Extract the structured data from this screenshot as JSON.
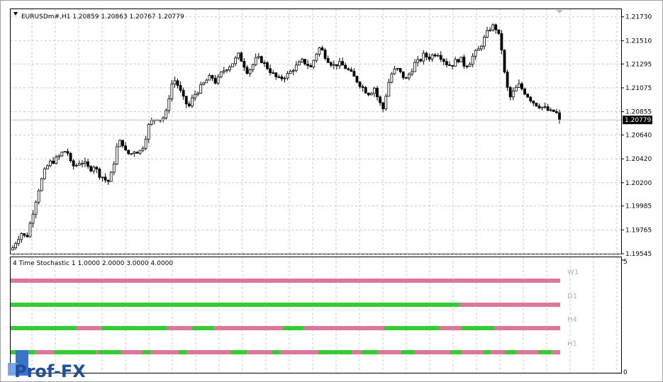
{
  "main_chart": {
    "header": "EURUSDm#,H1  1.20859 1.20863 1.20767 1.20779",
    "current_price": "1.20779",
    "price_ticks": [
      "1.21730",
      "1.21510",
      "1.21295",
      "1.21075",
      "1.20855",
      "1.20640",
      "1.20420",
      "1.20200",
      "1.19985",
      "1.19765",
      "1.19545"
    ]
  },
  "indicator": {
    "header": "4 Time Stochastic 1 1.0000 2.0000 3.0000 4.0000",
    "scale_top": "5",
    "scale_bottom": "0",
    "row_labels": [
      "W1",
      "D1",
      "H4",
      "H1"
    ]
  },
  "watermark": "Prof-FX",
  "colors": {
    "bull_green": "#33cc33",
    "bear_pink": "#dd7799",
    "grid": "#c0c0c0",
    "axis": "#000000"
  },
  "chart_data": [
    {
      "type": "candlestick",
      "title": "EURUSDm#,H1",
      "ylim": [
        1.19545,
        1.218
      ],
      "close_path": [
        1.196,
        1.1968,
        1.1974,
        1.1968,
        1.1985,
        1.2002,
        1.2018,
        1.203,
        1.2038,
        1.204,
        1.2043,
        1.2048,
        1.205,
        1.2035,
        1.2036,
        1.204,
        1.2037,
        1.2032,
        1.2036,
        1.2028,
        1.2025,
        1.202,
        1.203,
        1.2052,
        1.206,
        1.2048,
        1.2046,
        1.205,
        1.2048,
        1.2055,
        1.2072,
        1.2078,
        1.208,
        1.2078,
        1.2085,
        1.211,
        1.2115,
        1.2105,
        1.2095,
        1.209,
        1.21,
        1.2105,
        1.211,
        1.2115,
        1.2118,
        1.2112,
        1.212,
        1.2125,
        1.2128,
        1.2132,
        1.2138,
        1.213,
        1.2122,
        1.2128,
        1.2135,
        1.2133,
        1.2128,
        1.2123,
        1.2118,
        1.2115,
        1.2118,
        1.212,
        1.2125,
        1.2128,
        1.2132,
        1.213,
        1.2126,
        1.2138,
        1.2145,
        1.2138,
        1.2132,
        1.2128,
        1.213,
        1.2128,
        1.2125,
        1.212,
        1.2115,
        1.211,
        1.2105,
        1.2102,
        1.2108,
        1.2095,
        1.2088,
        1.211,
        1.2122,
        1.2125,
        1.212,
        1.2115,
        1.2122,
        1.213,
        1.2132,
        1.2138,
        1.2135,
        1.2138,
        1.214,
        1.2135,
        1.213,
        1.2128,
        1.2132,
        1.2135,
        1.2128,
        1.213,
        1.2138,
        1.2142,
        1.215,
        1.2158,
        1.2165,
        1.2162,
        1.215,
        1.2115,
        1.2098,
        1.2105,
        1.211,
        1.2105,
        1.21,
        1.2095,
        1.2092,
        1.209,
        1.2088,
        1.2085,
        1.2086,
        1.208
      ],
      "H1_close": "1.20779"
    },
    {
      "type": "table",
      "name": "4 Time Stochastic",
      "rows": [
        {
          "label": "W1",
          "segments": [
            [
              "bear",
              0,
              1
            ]
          ]
        },
        {
          "label": "D1",
          "segments": [
            [
              "bull",
              0,
              0.817
            ],
            [
              "bear",
              0.817,
              1
            ]
          ]
        },
        {
          "label": "H4",
          "segments": [
            [
              "bull",
              0,
              0.12
            ],
            [
              "bear",
              0.12,
              0.165
            ],
            [
              "bull",
              0.165,
              0.285
            ],
            [
              "bear",
              0.285,
              0.33
            ],
            [
              "bull",
              0.33,
              0.37
            ],
            [
              "bear",
              0.37,
              0.495
            ],
            [
              "bull",
              0.495,
              0.533
            ],
            [
              "bear",
              0.533,
              0.68
            ],
            [
              "bull",
              0.68,
              0.78
            ],
            [
              "bear",
              0.78,
              0.82
            ],
            [
              "bull",
              0.82,
              0.88
            ],
            [
              "bear",
              0.88,
              1
            ]
          ]
        },
        {
          "label": "H1",
          "segments": [
            [
              "bull",
              0,
              0.045
            ],
            [
              "bear",
              0.045,
              0.078
            ],
            [
              "bull",
              0.078,
              0.155
            ],
            [
              "bear",
              0.155,
              0.16
            ],
            [
              "bull",
              0.16,
              0.2
            ],
            [
              "bear",
              0.2,
              0.24
            ],
            [
              "bull",
              0.24,
              0.255
            ],
            [
              "bear",
              0.255,
              0.305
            ],
            [
              "bull",
              0.305,
              0.32
            ],
            [
              "bear",
              0.32,
              0.4
            ],
            [
              "bull",
              0.4,
              0.43
            ],
            [
              "bear",
              0.43,
              0.475
            ],
            [
              "bull",
              0.475,
              0.49
            ],
            [
              "bear",
              0.49,
              0.56
            ],
            [
              "bull",
              0.56,
              0.62
            ],
            [
              "bear",
              0.62,
              0.638
            ],
            [
              "bull",
              0.638,
              0.668
            ],
            [
              "bear",
              0.668,
              0.71
            ],
            [
              "bull",
              0.71,
              0.735
            ],
            [
              "bear",
              0.735,
              0.8
            ],
            [
              "bull",
              0.8,
              0.82
            ],
            [
              "bear",
              0.82,
              0.86
            ],
            [
              "bull",
              0.86,
              0.873
            ],
            [
              "bear",
              0.873,
              0.9
            ],
            [
              "bull",
              0.9,
              0.92
            ],
            [
              "bear",
              0.92,
              0.96
            ],
            [
              "bull",
              0.96,
              0.985
            ],
            [
              "bear",
              0.985,
              1
            ]
          ]
        }
      ]
    }
  ]
}
